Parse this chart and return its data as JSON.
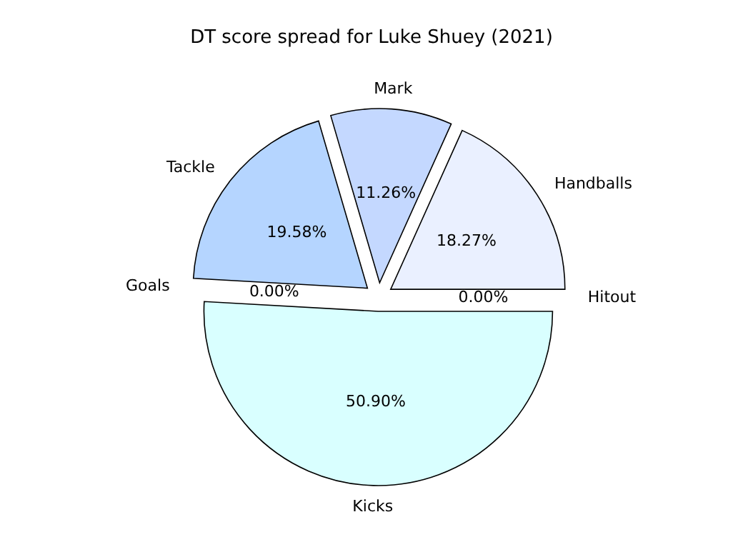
{
  "chart_data": {
    "type": "pie",
    "title": "DT score spread for Luke Shuey (2021)",
    "categories": [
      "Handballs",
      "Mark",
      "Tackle",
      "Goals",
      "Kicks",
      "Hitout"
    ],
    "values": [
      18.27,
      11.26,
      19.58,
      0,
      50.9,
      0
    ],
    "value_labels": [
      "18.27%",
      "11.26%",
      "19.58%",
      "0.00%",
      "50.90%",
      "0.00%"
    ],
    "colors": [
      "#eaf0ff",
      "#c4d8ff",
      "#b5d5ff",
      "#b0c4de",
      "#d9ffff",
      "#e0e8f8"
    ]
  }
}
